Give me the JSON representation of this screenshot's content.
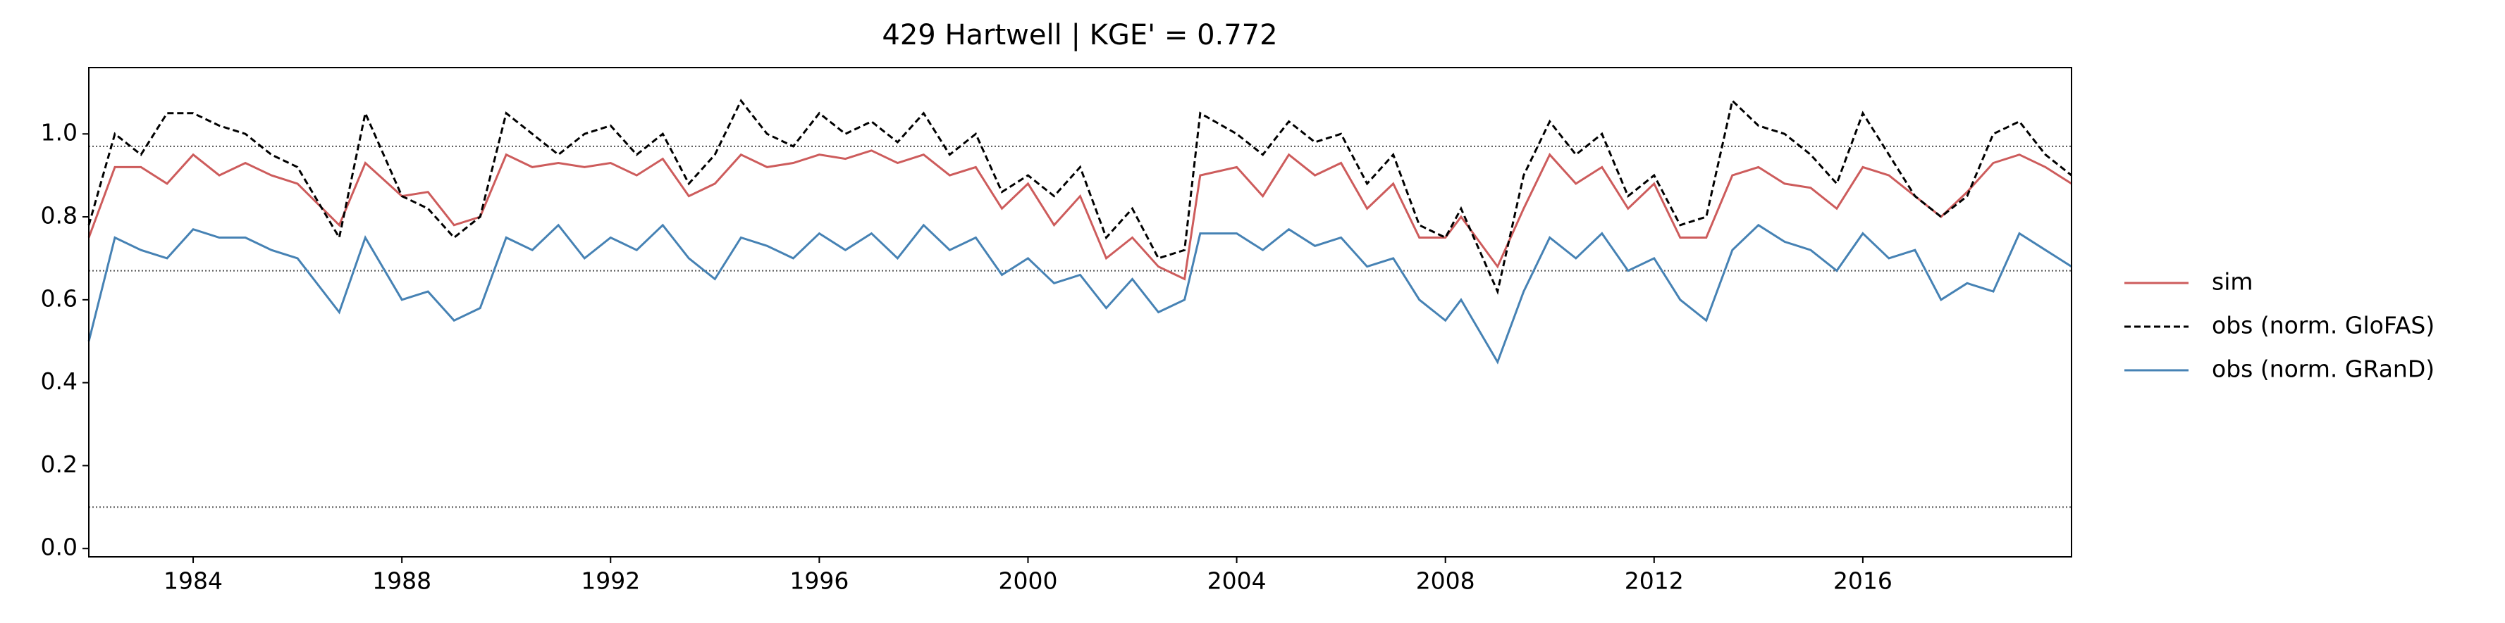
{
  "chart_data": {
    "type": "line",
    "title": "429  Hartwell | KGE' = 0.772",
    "xlim": [
      1982,
      2020
    ],
    "ylim": [
      -0.02,
      1.16
    ],
    "xticks": [
      1984,
      1988,
      1992,
      1996,
      2000,
      2004,
      2008,
      2012,
      2016
    ],
    "yticks": [
      {
        "value": 0,
        "label": "0.0"
      },
      0.2,
      0.4,
      0.6,
      0.8,
      {
        "value": 1,
        "label": "1.0"
      }
    ],
    "hlines": [
      0.1,
      0.67,
      0.97
    ],
    "hline_color": "#555555",
    "legend": "right",
    "x": [
      1982,
      1982.5,
      1983,
      1983.5,
      1984,
      1984.5,
      1985,
      1985.5,
      1986,
      1986.8,
      1987.3,
      1988,
      1988.5,
      1989,
      1989.5,
      1990,
      1990.5,
      1991,
      1991.5,
      1992,
      1992.5,
      1993,
      1993.5,
      1994,
      1994.5,
      1995,
      1995.5,
      1996,
      1996.5,
      1997,
      1997.5,
      1998,
      1998.5,
      1999,
      1999.5,
      2000,
      2000.5,
      2001,
      2001.5,
      2002,
      2002.5,
      2003,
      2003.3,
      2004,
      2004.5,
      2005,
      2005.5,
      2006,
      2006.5,
      2007,
      2007.5,
      2008,
      2008.3,
      2009,
      2009.5,
      2010,
      2010.5,
      2011,
      2011.5,
      2012,
      2012.5,
      2013,
      2013.5,
      2014,
      2014.5,
      2015,
      2015.5,
      2016,
      2016.5,
      2017,
      2017.5,
      2018,
      2018.5,
      2019,
      2019.5,
      2020
    ],
    "series": [
      {
        "name": "sim",
        "color": "#cd5c5c",
        "linestyle": "solid",
        "values": [
          0.75,
          0.92,
          0.92,
          0.88,
          0.95,
          0.9,
          0.93,
          0.9,
          0.88,
          0.78,
          0.93,
          0.85,
          0.86,
          0.78,
          0.8,
          0.95,
          0.92,
          0.93,
          0.92,
          0.93,
          0.9,
          0.94,
          0.85,
          0.88,
          0.95,
          0.92,
          0.93,
          0.95,
          0.94,
          0.96,
          0.93,
          0.95,
          0.9,
          0.92,
          0.82,
          0.88,
          0.78,
          0.85,
          0.7,
          0.75,
          0.68,
          0.65,
          0.9,
          0.92,
          0.85,
          0.95,
          0.9,
          0.93,
          0.82,
          0.88,
          0.75,
          0.75,
          0.8,
          0.68,
          0.82,
          0.95,
          0.88,
          0.92,
          0.82,
          0.88,
          0.75,
          0.75,
          0.9,
          0.92,
          0.88,
          0.87,
          0.82,
          0.92,
          0.9,
          0.85,
          0.8,
          0.86,
          0.93,
          0.95,
          0.92,
          0.88
        ]
      },
      {
        "name": "obs (norm. GloFAS)",
        "color": "#000000",
        "linestyle": "dashed",
        "values": [
          0.78,
          1.0,
          0.95,
          1.05,
          1.05,
          1.02,
          1.0,
          0.95,
          0.92,
          0.75,
          1.05,
          0.85,
          0.82,
          0.75,
          0.8,
          1.05,
          1.0,
          0.95,
          1.0,
          1.02,
          0.95,
          1.0,
          0.88,
          0.95,
          1.08,
          1.0,
          0.97,
          1.05,
          1.0,
          1.03,
          0.98,
          1.05,
          0.95,
          1.0,
          0.86,
          0.9,
          0.85,
          0.92,
          0.75,
          0.82,
          0.7,
          0.72,
          1.05,
          1.0,
          0.95,
          1.03,
          0.98,
          1.0,
          0.88,
          0.95,
          0.78,
          0.75,
          0.82,
          0.62,
          0.9,
          1.03,
          0.95,
          1.0,
          0.85,
          0.9,
          0.78,
          0.8,
          1.08,
          1.02,
          1.0,
          0.95,
          0.88,
          1.05,
          0.95,
          0.85,
          0.8,
          0.85,
          1.0,
          1.03,
          0.95,
          0.9
        ]
      },
      {
        "name": "obs (norm. GRanD)",
        "color": "#4682b4",
        "linestyle": "solid",
        "values": [
          0.5,
          0.75,
          0.72,
          0.7,
          0.77,
          0.75,
          0.75,
          0.72,
          0.7,
          0.57,
          0.75,
          0.6,
          0.62,
          0.55,
          0.58,
          0.75,
          0.72,
          0.78,
          0.7,
          0.75,
          0.72,
          0.78,
          0.7,
          0.65,
          0.75,
          0.73,
          0.7,
          0.76,
          0.72,
          0.76,
          0.7,
          0.78,
          0.72,
          0.75,
          0.66,
          0.7,
          0.64,
          0.66,
          0.58,
          0.65,
          0.57,
          0.6,
          0.76,
          0.76,
          0.72,
          0.77,
          0.73,
          0.75,
          0.68,
          0.7,
          0.6,
          0.55,
          0.6,
          0.45,
          0.62,
          0.75,
          0.7,
          0.76,
          0.67,
          0.7,
          0.6,
          0.55,
          0.72,
          0.78,
          0.74,
          0.72,
          0.67,
          0.76,
          0.7,
          0.72,
          0.6,
          0.64,
          0.62,
          0.76,
          0.72,
          0.68
        ]
      }
    ]
  }
}
